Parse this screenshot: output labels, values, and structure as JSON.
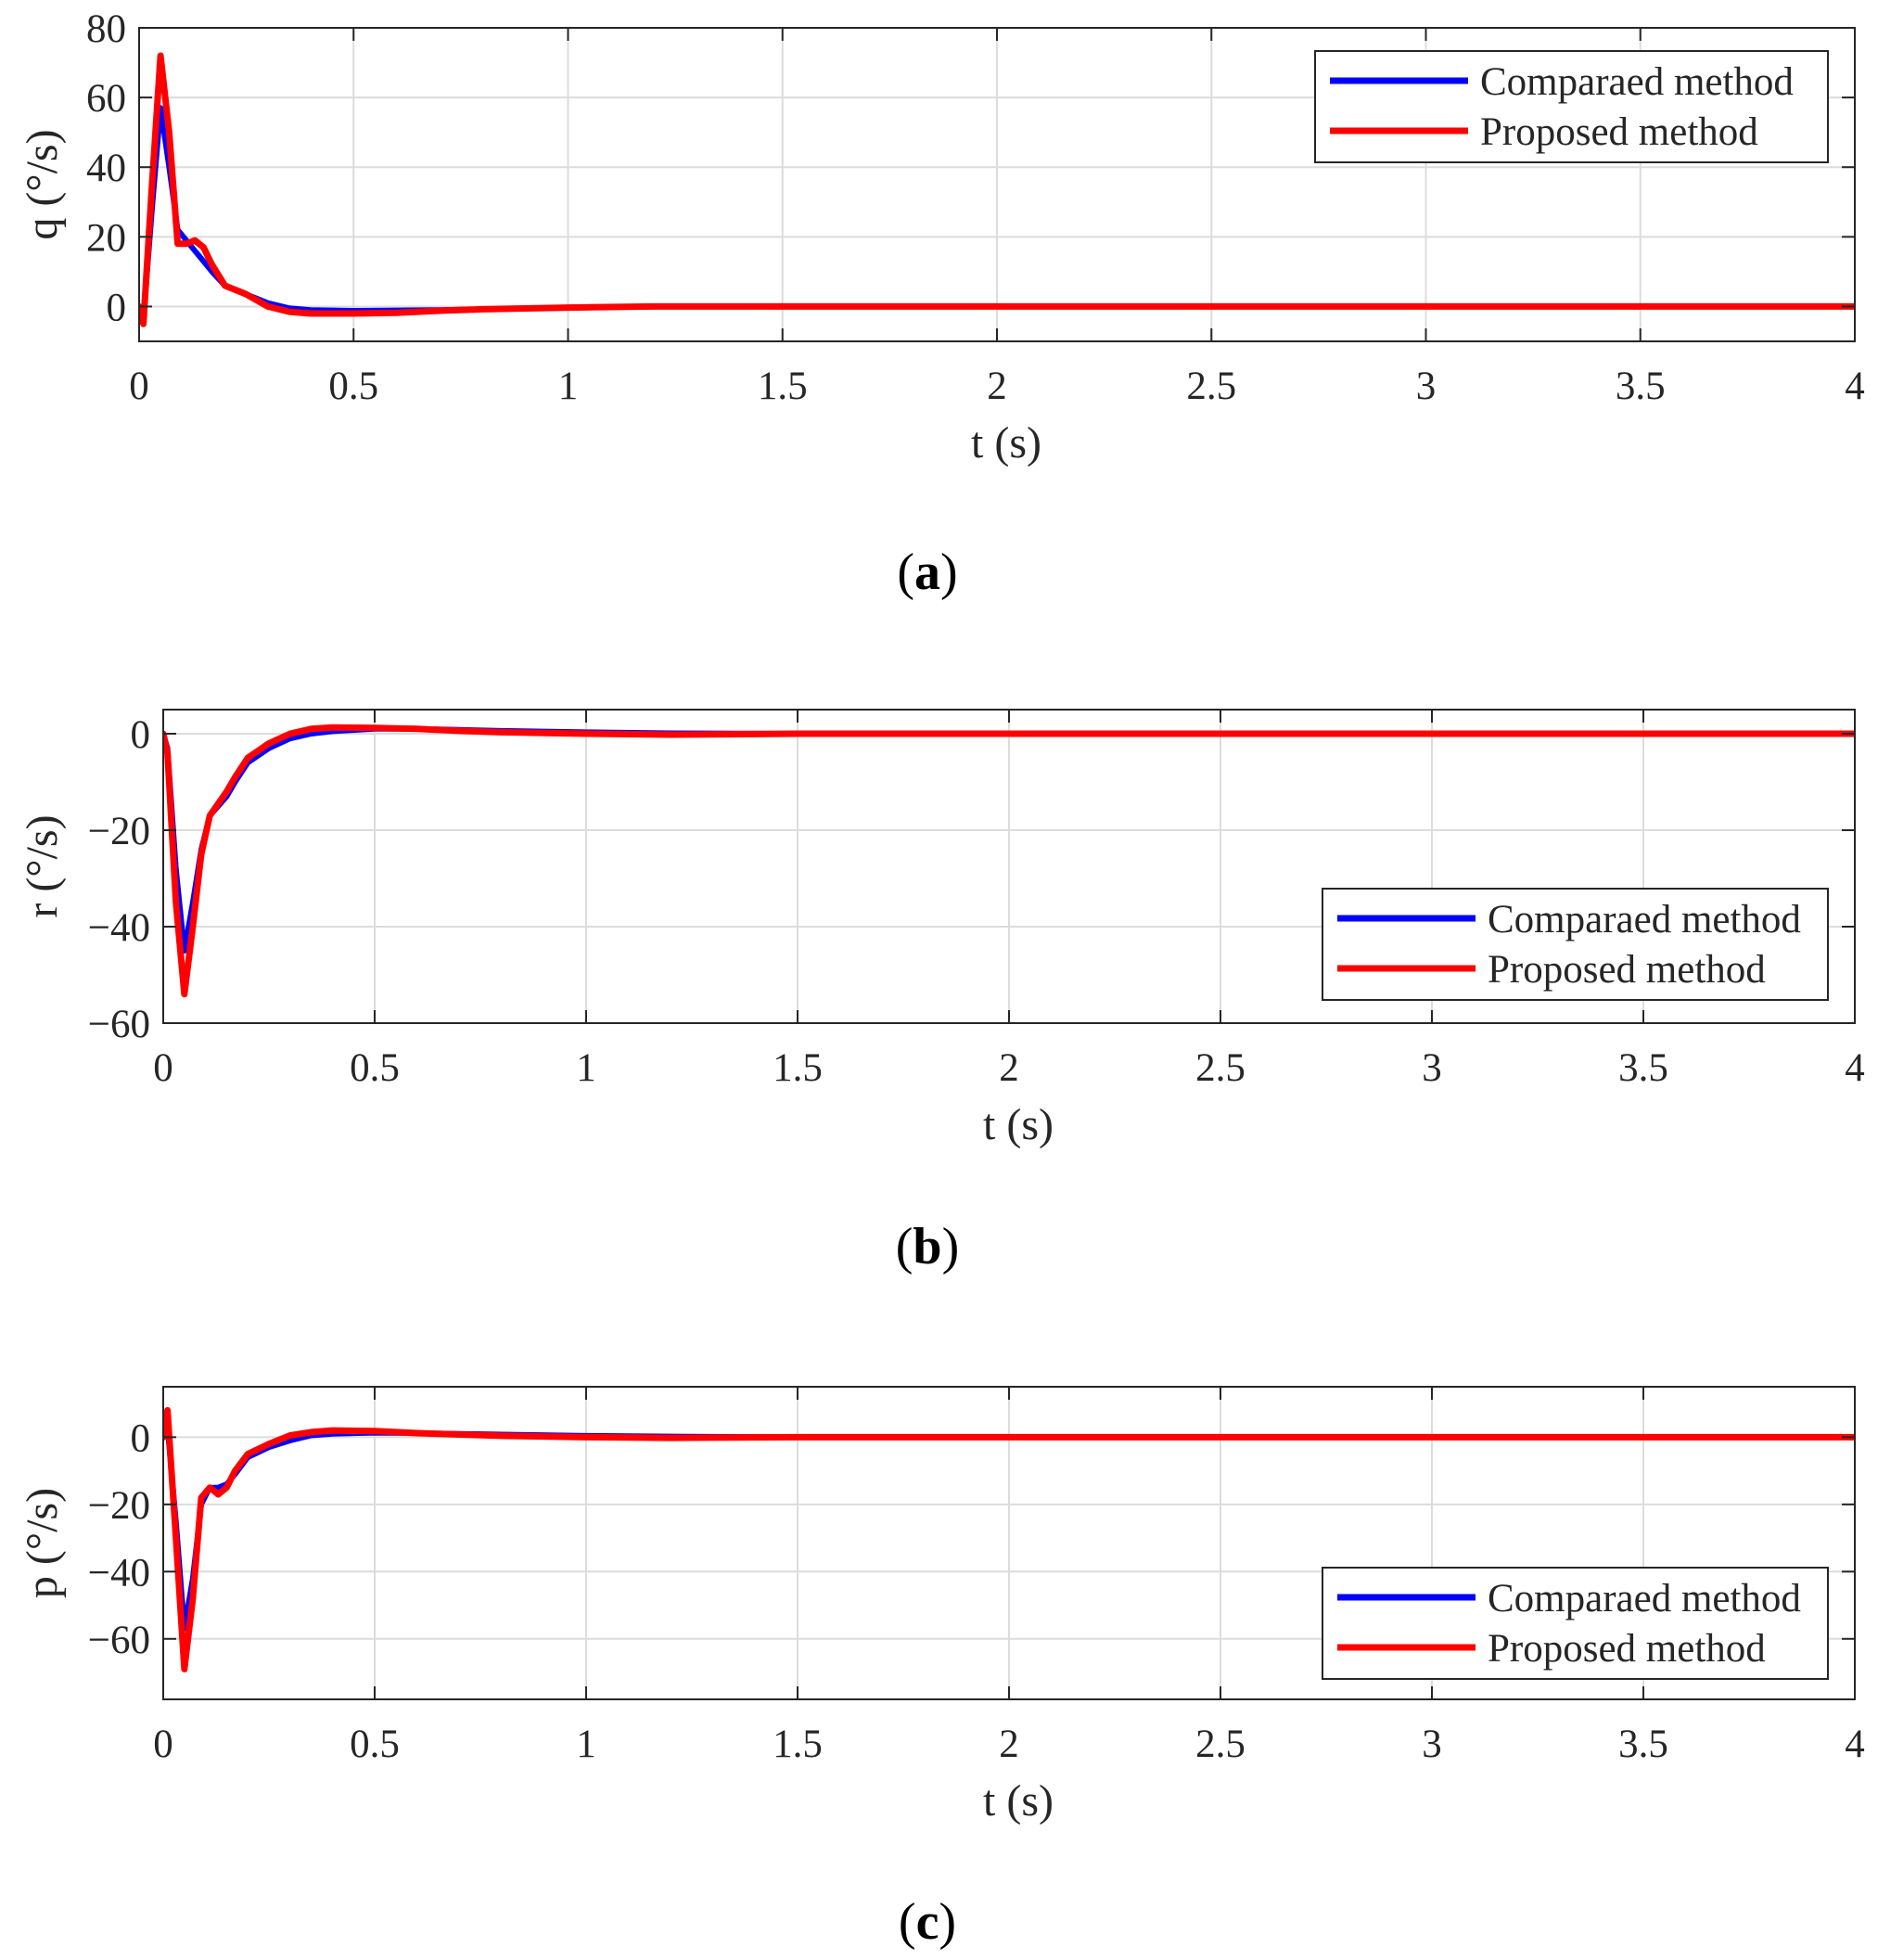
{
  "figure": {
    "captions": [
      "(a)",
      "(b)",
      "(c)"
    ],
    "caption_letters": [
      "a",
      "b",
      "c"
    ]
  },
  "colors": {
    "compared": "#0000ff",
    "proposed": "#ff0000",
    "grid": "#dcdcdc",
    "axes": "#262626"
  },
  "chart_data": [
    {
      "type": "line",
      "caption": "(a)",
      "xlabel": "t (s)",
      "ylabel": "q (°/s)",
      "xlim": [
        0,
        4
      ],
      "ylim": [
        -10,
        80
      ],
      "xticks": [
        0,
        0.5,
        1,
        1.5,
        2,
        2.5,
        3,
        3.5,
        4
      ],
      "xtick_labels": [
        "0",
        "0.5",
        "1",
        "1.5",
        "2",
        "2.5",
        "3",
        "3.5",
        "4"
      ],
      "yticks": [
        0,
        20,
        40,
        60,
        80
      ],
      "ytick_labels": [
        "0",
        "20",
        "40",
        "60",
        "80"
      ],
      "grid": true,
      "legend": "top-right",
      "series": [
        {
          "name": "Comparaed method",
          "color": "#0000ff",
          "x": [
            0,
            0.01,
            0.03,
            0.05,
            0.07,
            0.09,
            0.11,
            0.13,
            0.15,
            0.17,
            0.2,
            0.25,
            0.3,
            0.35,
            0.4,
            0.5,
            0.6,
            0.7,
            0.8,
            1.0,
            1.2,
            1.5,
            2.0,
            2.5,
            3.0,
            3.5,
            4.0
          ],
          "y": [
            0,
            -4,
            28,
            57,
            40,
            22,
            19,
            16,
            13,
            10,
            6,
            3.5,
            1,
            -0.5,
            -1,
            -1.2,
            -1.1,
            -1,
            -0.8,
            -0.4,
            0,
            0,
            0,
            0,
            0,
            0,
            0
          ]
        },
        {
          "name": "Proposed method",
          "color": "#ff0000",
          "x": [
            0,
            0.01,
            0.03,
            0.05,
            0.07,
            0.09,
            0.11,
            0.13,
            0.15,
            0.17,
            0.2,
            0.25,
            0.3,
            0.35,
            0.4,
            0.5,
            0.6,
            0.7,
            0.8,
            1.0,
            1.2,
            1.5,
            2.0,
            2.5,
            3.0,
            3.5,
            4.0
          ],
          "y": [
            0,
            -5,
            35,
            72,
            50,
            18,
            18,
            19,
            17,
            12,
            6,
            3.5,
            0,
            -1.5,
            -2,
            -2,
            -1.8,
            -1.2,
            -0.8,
            -0.3,
            0,
            0,
            0,
            0,
            0,
            0,
            0
          ]
        }
      ]
    },
    {
      "type": "line",
      "caption": "(b)",
      "xlabel": "t (s)",
      "ylabel": "r (°/s)",
      "xlim": [
        0,
        4
      ],
      "ylim": [
        -60,
        5
      ],
      "xticks": [
        0,
        0.5,
        1,
        1.5,
        2,
        2.5,
        3,
        3.5,
        4
      ],
      "xtick_labels": [
        "0",
        "0.5",
        "1",
        "1.5",
        "2",
        "2.5",
        "3",
        "3.5",
        "4"
      ],
      "yticks": [
        -60,
        -40,
        -20,
        0
      ],
      "ytick_labels": [
        "−60",
        "−40",
        "−20",
        "0"
      ],
      "grid": true,
      "legend": "bottom-right",
      "series": [
        {
          "name": "Comparaed method",
          "color": "#0000ff",
          "x": [
            0,
            0.01,
            0.03,
            0.05,
            0.07,
            0.09,
            0.11,
            0.13,
            0.15,
            0.17,
            0.2,
            0.25,
            0.3,
            0.35,
            0.4,
            0.5,
            0.6,
            0.7,
            0.8,
            1.0,
            1.2,
            1.5,
            2.0,
            2.5,
            3.0,
            3.5,
            4.0
          ],
          "y": [
            0,
            -3,
            -28,
            -45,
            -35,
            -24,
            -17,
            -15,
            -13,
            -10,
            -6,
            -3,
            -1,
            0,
            0.5,
            1,
            1,
            0.8,
            0.6,
            0.3,
            0.1,
            0,
            0,
            0,
            0,
            0,
            0
          ]
        },
        {
          "name": "Proposed method",
          "color": "#ff0000",
          "x": [
            0,
            0.01,
            0.03,
            0.05,
            0.07,
            0.09,
            0.11,
            0.13,
            0.15,
            0.17,
            0.2,
            0.25,
            0.3,
            0.35,
            0.4,
            0.5,
            0.6,
            0.7,
            0.8,
            1.0,
            1.2,
            1.5,
            2.0,
            2.5,
            3.0,
            3.5,
            4.0
          ],
          "y": [
            0,
            -4,
            -35,
            -54,
            -40,
            -25,
            -17,
            -14.5,
            -12,
            -9,
            -5,
            -2,
            0,
            1,
            1.3,
            1.2,
            1,
            0.6,
            0.3,
            0,
            -0.2,
            0,
            0,
            0,
            0,
            0,
            0
          ]
        }
      ]
    },
    {
      "type": "line",
      "caption": "(c)",
      "xlabel": "t (s)",
      "ylabel": "p (°/s)",
      "xlim": [
        0,
        4
      ],
      "ylim": [
        -78,
        15
      ],
      "xticks": [
        0,
        0.5,
        1,
        1.5,
        2,
        2.5,
        3,
        3.5,
        4
      ],
      "xtick_labels": [
        "0",
        "0.5",
        "1",
        "1.5",
        "2",
        "2.5",
        "3",
        "3.5",
        "4"
      ],
      "yticks": [
        -60,
        -40,
        -20,
        0
      ],
      "ytick_labels": [
        "−60",
        "−40",
        "−20",
        "0"
      ],
      "grid": true,
      "legend": "bottom-right",
      "series": [
        {
          "name": "Comparaed method",
          "color": "#0000ff",
          "x": [
            0,
            0.01,
            0.03,
            0.05,
            0.07,
            0.09,
            0.11,
            0.13,
            0.15,
            0.17,
            0.2,
            0.25,
            0.3,
            0.35,
            0.4,
            0.5,
            0.6,
            0.7,
            0.8,
            1.0,
            1.2,
            1.5,
            2.0,
            2.5,
            3.0,
            3.5,
            4.0
          ],
          "y": [
            0,
            3,
            -25,
            -57,
            -42,
            -20,
            -15,
            -15,
            -14,
            -11,
            -6,
            -3,
            -1,
            0.5,
            1,
            1.3,
            1.2,
            1,
            0.8,
            0.4,
            0.2,
            0,
            0,
            0,
            0,
            0,
            0
          ]
        },
        {
          "name": "Proposed method",
          "color": "#ff0000",
          "x": [
            0,
            0.01,
            0.03,
            0.05,
            0.07,
            0.09,
            0.11,
            0.13,
            0.15,
            0.17,
            0.2,
            0.25,
            0.3,
            0.35,
            0.4,
            0.5,
            0.6,
            0.7,
            0.8,
            1.0,
            1.2,
            1.5,
            2.0,
            2.5,
            3.0,
            3.5,
            4.0
          ],
          "y": [
            0,
            8,
            -30,
            -69,
            -48,
            -18,
            -15,
            -17,
            -15,
            -10,
            -5,
            -2,
            0.5,
            1.5,
            2,
            1.8,
            1.2,
            0.8,
            0.4,
            0,
            -0.2,
            0,
            0,
            0,
            0,
            0,
            0
          ]
        }
      ]
    }
  ]
}
